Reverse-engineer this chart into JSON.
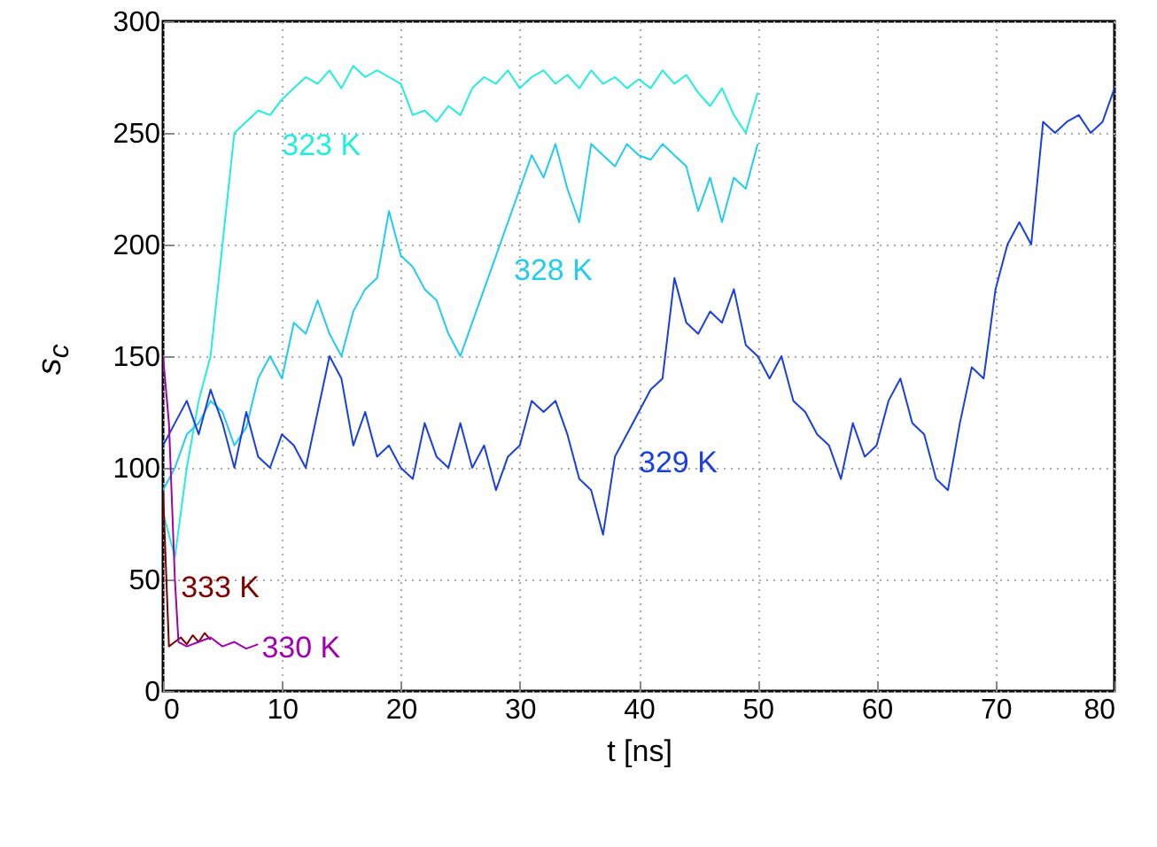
{
  "chart_data": {
    "type": "line",
    "xlabel": "t [ns]",
    "ylabel": "s$_{c}$",
    "xlim": [
      0,
      80
    ],
    "xticks": [
      0,
      10,
      20,
      30,
      40,
      50,
      60,
      70,
      80
    ],
    "ylim": [
      0,
      300
    ],
    "yticks": [
      0,
      50,
      100,
      150,
      200,
      250,
      300
    ],
    "grid": true,
    "line_style": "solid",
    "marker": "none",
    "series": [
      {
        "name": "323 K",
        "color": "#22eedd",
        "x": [
          0,
          1,
          2,
          3,
          4,
          5,
          6,
          7,
          8,
          9,
          10,
          11,
          12,
          13,
          14,
          15,
          16,
          17,
          18,
          19,
          20,
          21,
          22,
          23,
          24,
          25,
          26,
          27,
          28,
          29,
          30,
          31,
          32,
          33,
          34,
          35,
          36,
          37,
          38,
          39,
          40,
          41,
          42,
          43,
          44,
          45,
          46,
          47,
          48,
          49,
          50
        ],
        "values": [
          80,
          60,
          100,
          130,
          150,
          200,
          250,
          255,
          260,
          258,
          265,
          270,
          275,
          272,
          278,
          270,
          280,
          275,
          278,
          275,
          272,
          258,
          260,
          255,
          262,
          258,
          270,
          275,
          272,
          278,
          270,
          275,
          278,
          272,
          276,
          270,
          278,
          272,
          275,
          270,
          274,
          270,
          278,
          272,
          276,
          268,
          262,
          270,
          258,
          250,
          268
        ]
      },
      {
        "name": "328 K",
        "color": "#22ccee",
        "x": [
          0,
          1,
          2,
          3,
          4,
          5,
          6,
          7,
          8,
          9,
          10,
          11,
          12,
          13,
          14,
          15,
          16,
          17,
          18,
          19,
          20,
          21,
          22,
          23,
          24,
          25,
          26,
          27,
          28,
          29,
          30,
          31,
          32,
          33,
          34,
          35,
          36,
          37,
          38,
          39,
          40,
          41,
          42,
          43,
          44,
          45,
          46,
          47,
          48,
          49,
          50
        ],
        "values": [
          90,
          100,
          115,
          120,
          130,
          125,
          110,
          118,
          140,
          150,
          140,
          165,
          160,
          175,
          160,
          150,
          170,
          180,
          185,
          215,
          195,
          190,
          180,
          175,
          160,
          150,
          165,
          180,
          195,
          210,
          225,
          240,
          230,
          245,
          225,
          210,
          245,
          240,
          235,
          245,
          240,
          238,
          245,
          240,
          235,
          215,
          230,
          210,
          230,
          225,
          245
        ]
      },
      {
        "name": "329 K",
        "color": "#1a3fe0",
        "x": [
          0,
          1,
          2,
          3,
          4,
          5,
          6,
          7,
          8,
          9,
          10,
          11,
          12,
          13,
          14,
          15,
          16,
          17,
          18,
          19,
          20,
          21,
          22,
          23,
          24,
          25,
          26,
          27,
          28,
          29,
          30,
          31,
          32,
          33,
          34,
          35,
          36,
          37,
          38,
          39,
          40,
          41,
          42,
          43,
          44,
          45,
          46,
          47,
          48,
          49,
          50,
          51,
          52,
          53,
          54,
          55,
          56,
          57,
          58,
          59,
          60,
          61,
          62,
          63,
          64,
          65,
          66,
          67,
          68,
          69,
          70,
          71,
          72,
          73,
          74,
          75,
          76,
          77,
          78,
          79,
          80
        ],
        "values": [
          110,
          120,
          130,
          115,
          135,
          120,
          100,
          125,
          105,
          100,
          115,
          110,
          100,
          125,
          150,
          140,
          110,
          125,
          105,
          110,
          100,
          95,
          120,
          105,
          100,
          120,
          100,
          110,
          90,
          105,
          110,
          130,
          125,
          130,
          115,
          95,
          90,
          70,
          105,
          115,
          125,
          135,
          140,
          185,
          165,
          160,
          170,
          165,
          180,
          155,
          150,
          140,
          150,
          130,
          125,
          115,
          110,
          95,
          120,
          105,
          110,
          130,
          140,
          120,
          115,
          95,
          90,
          120,
          145,
          140,
          180,
          200,
          210,
          200,
          255,
          250,
          255,
          258,
          250,
          255,
          270
        ]
      },
      {
        "name": "333 K",
        "color": "#800000",
        "x": [
          0,
          0.5,
          1,
          1.5,
          2,
          2.5,
          3,
          3.5,
          4
        ],
        "values": [
          90,
          20,
          22,
          24,
          21,
          25,
          22,
          26,
          23
        ]
      },
      {
        "name": "330 K",
        "color": "#a000b0",
        "x": [
          0,
          0.5,
          1,
          1.3,
          2,
          3,
          4,
          5,
          6,
          7,
          8
        ],
        "values": [
          150,
          120,
          50,
          22,
          20,
          22,
          24,
          20,
          22,
          19,
          21
        ]
      }
    ]
  }
}
